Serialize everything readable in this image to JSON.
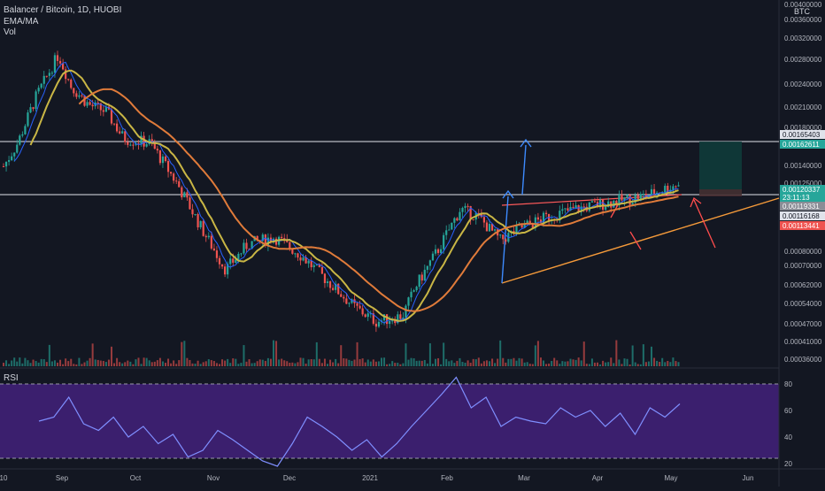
{
  "header": {
    "symbol_line": "Balancer / Bitcoin, 1D, HUOBI",
    "indicator_1": "EMA/MA",
    "indicator_2": "Vol",
    "rsi_label": "RSI",
    "currency": "BTC"
  },
  "colors": {
    "background": "#131722",
    "bull": "#26a69a",
    "bear": "#ef5350",
    "ema": "#c9b645",
    "ma": "#e07b3a",
    "fast": "#2962ff",
    "rsi_bg": "#3b1f6e",
    "rsi_line": "#7f8fff",
    "arrow_blue": "#3d8bff",
    "target_fill": "#0f3b3a"
  },
  "chart_data": {
    "type": "candlestick",
    "title": "Balancer / Bitcoin, 1D, HUOBI",
    "x_ticks": [
      "10",
      "Sep",
      "Oct",
      "Nov",
      "Dec",
      "2021",
      "Feb",
      "Mar",
      "Apr",
      "May",
      "Jun"
    ],
    "y_ticks": [
      "0.00400000",
      "0.00360000",
      "0.00320000",
      "0.00280000",
      "0.00240000",
      "0.00210000",
      "0.00180000",
      "0.00140000",
      "0.00125000",
      "0.00080000",
      "0.00070000",
      "0.00062000",
      "0.00054000",
      "0.00047000",
      "0.00041000",
      "0.00036000"
    ],
    "y_scale": "log",
    "price_labels": [
      {
        "text": "0.00165403",
        "style": "white"
      },
      {
        "text": "0.00162611",
        "style": "teal"
      },
      {
        "text": "0.00120337",
        "style": "teal"
      },
      {
        "text": "23:11:13",
        "style": "teal"
      },
      {
        "text": "0.00119331",
        "style": "gray"
      },
      {
        "text": "0.00116168",
        "style": "white"
      },
      {
        "text": "0.00113441",
        "style": "red"
      }
    ],
    "key_points": [
      {
        "label": "Sep",
        "close": 0.003
      },
      {
        "label": "Oct",
        "close": 0.00165
      },
      {
        "label": "Nov",
        "close": 0.00062
      },
      {
        "label": "Dec",
        "close": 0.00075
      },
      {
        "label": "2021",
        "close": 0.00044
      },
      {
        "label": "Feb",
        "close": 0.00105
      },
      {
        "label": "Mar",
        "close": 0.0009
      },
      {
        "label": "Apr",
        "close": 0.001
      },
      {
        "label": "May",
        "close": 0.00120337
      }
    ],
    "rsi": {
      "y_ticks": [
        "80",
        "60",
        "40",
        "20"
      ],
      "upper": 80,
      "lower": 30,
      "values": [
        52,
        55,
        70,
        50,
        45,
        55,
        40,
        48,
        35,
        42,
        25,
        30,
        45,
        38,
        30,
        22,
        18,
        35,
        55,
        48,
        40,
        30,
        38,
        25,
        35,
        48,
        60,
        72,
        85,
        62,
        70,
        48,
        55,
        52,
        50,
        62,
        55,
        60,
        48,
        58,
        42,
        62,
        55,
        65
      ]
    }
  }
}
